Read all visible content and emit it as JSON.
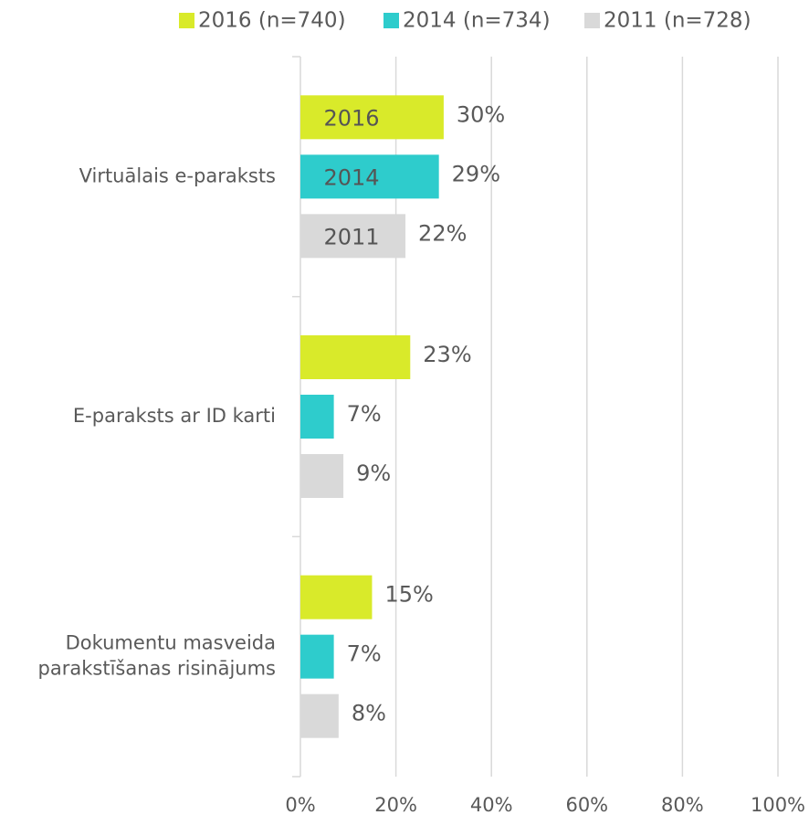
{
  "chart_data": {
    "type": "hbar",
    "categories": [
      "Virtuālais e-paraksts",
      "E-paraksts ar ID karti",
      "Dokumentu masveida\nparakstīšanas risinājums"
    ],
    "series": [
      {
        "name": "2016 (n=740)",
        "color": "#d9ea2a",
        "values": [
          30,
          23,
          15
        ],
        "value_labels": [
          "30%",
          "23%",
          "15%"
        ]
      },
      {
        "name": "2014 (n=734)",
        "color": "#2ecccc",
        "values": [
          29,
          7,
          7
        ],
        "value_labels": [
          "29%",
          "7%",
          "7%"
        ]
      },
      {
        "name": "2011 (n=728)",
        "color": "#d9d9d9",
        "values": [
          22,
          9,
          8
        ],
        "value_labels": [
          "22%",
          "9%",
          "8%"
        ]
      }
    ],
    "bar_annotations": [
      "2016",
      "2014",
      "2011"
    ],
    "xlim": [
      0,
      100
    ],
    "xticks": [
      {
        "value": 0,
        "label": "0%"
      },
      {
        "value": 20,
        "label": "20%"
      },
      {
        "value": 40,
        "label": "40%"
      },
      {
        "value": 60,
        "label": "60%"
      },
      {
        "value": 80,
        "label": "80%"
      },
      {
        "value": 100,
        "label": "100%"
      }
    ],
    "grid": true,
    "legend": "top"
  }
}
